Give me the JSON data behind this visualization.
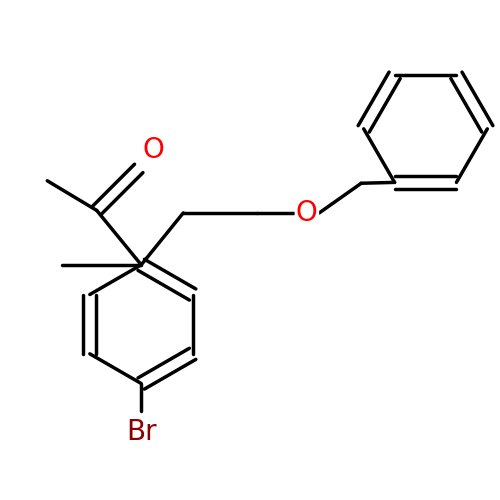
{
  "bond_color": "#000000",
  "bond_width": 2.5,
  "background_color": "#ffffff",
  "atom_colors": {
    "O": "#ff0000",
    "Br": "#8b0000",
    "C": "#000000"
  },
  "label_fontsize": 20,
  "figsize": [
    5.0,
    5.0
  ],
  "dpi": 100,
  "xlim": [
    0,
    10
  ],
  "ylim": [
    0,
    10
  ]
}
